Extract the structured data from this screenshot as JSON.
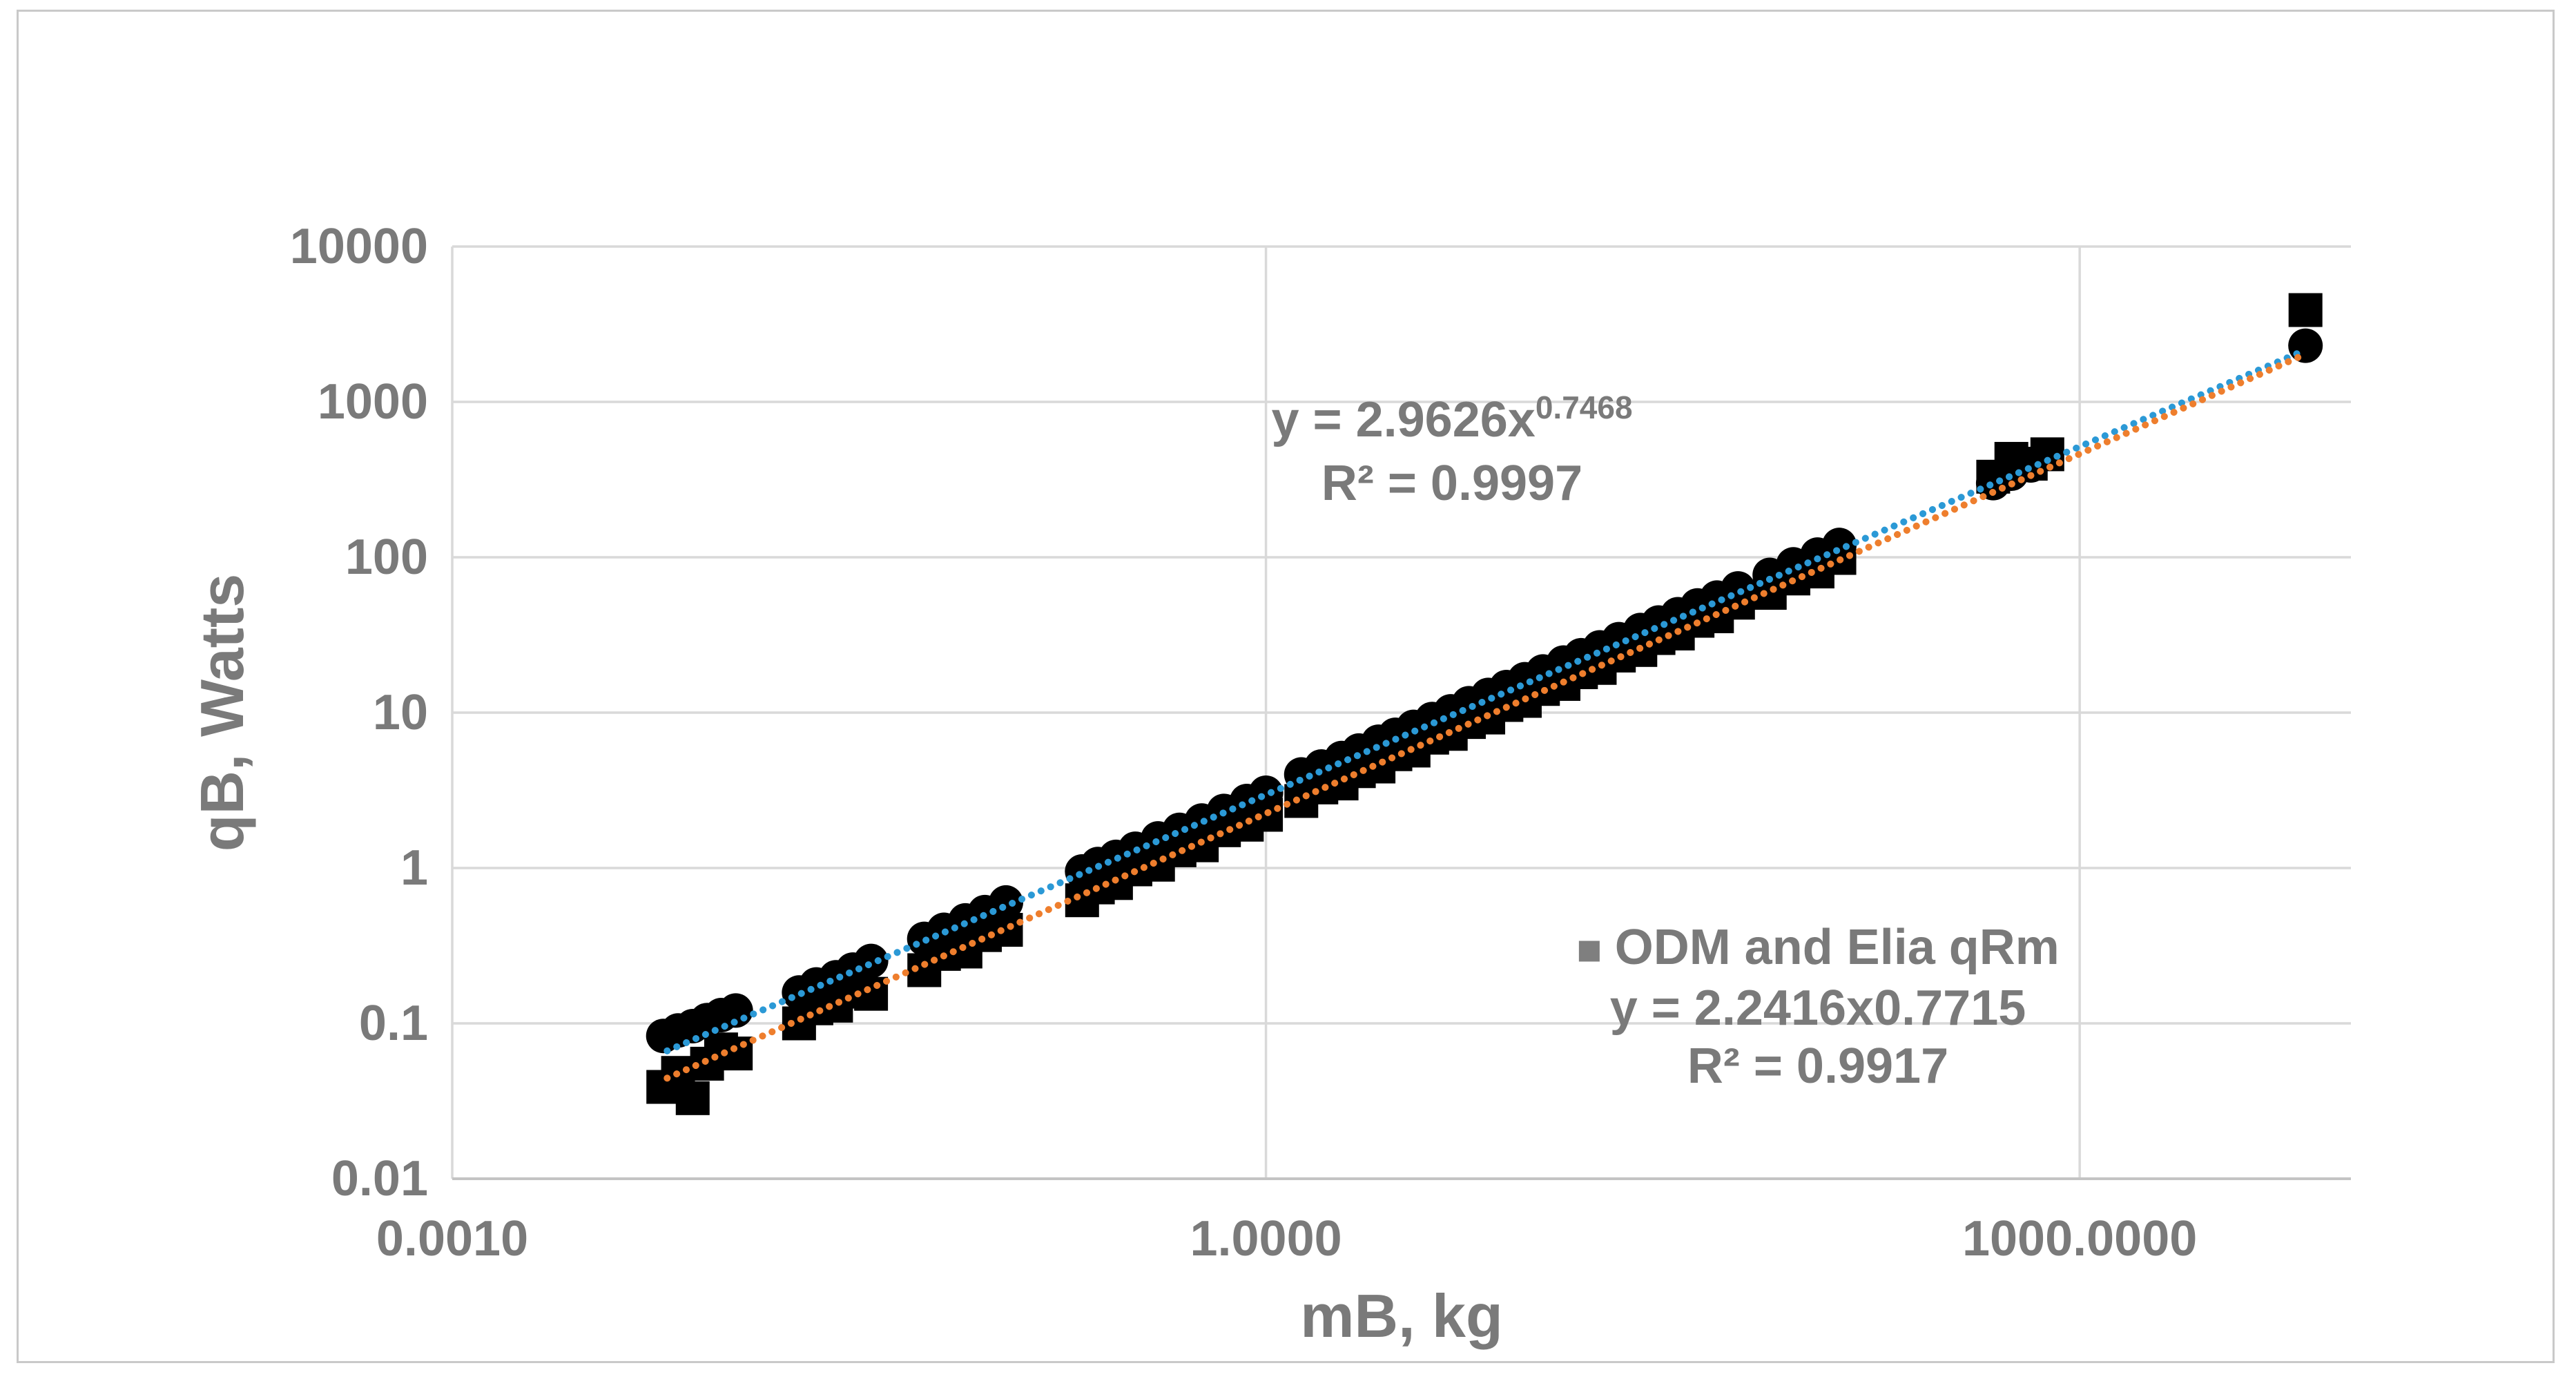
{
  "chart": {
    "background_color": "#ffffff",
    "frame_border_color": "#c9c9c9",
    "gridline_color": "#d9d9d9",
    "axis_line_color": "#c4c4c4",
    "text_color": "#7a7a7a",
    "marker_color": "#000000",
    "trendline_blue_color": "#2b99d6",
    "trendline_orange_color": "#ee7e2d",
    "legend_marker_color": "#7f7f7f"
  },
  "axis_titles": {
    "y": "qB, Watts",
    "x": "mB, kg"
  },
  "annotations": {
    "trend1_prefix": "y = 2.9626x",
    "trend1_exponent": "0.7468",
    "trend1_r2": "R² = 0.9997",
    "legend_marker": "■",
    "legend_label": "ODM and Elia qRm",
    "trend2_equation": "y = 2.2416x0.7715",
    "trend2_r2": "R² = 0.9917"
  },
  "chart_data": {
    "type": "scatter",
    "title": "",
    "xlabel": "mB, kg",
    "ylabel": "qB, Watts",
    "x_axis": {
      "scale": "log",
      "min": 0.001,
      "max": 10000,
      "ticks": [
        {
          "value": 0.001,
          "label": "0.0010"
        },
        {
          "value": 1,
          "label": "1.0000"
        },
        {
          "value": 1000,
          "label": "1000.0000"
        }
      ]
    },
    "y_axis": {
      "scale": "log",
      "min": 0.01,
      "max": 10000,
      "ticks": [
        {
          "value": 10000,
          "label": "10000"
        },
        {
          "value": 1000,
          "label": "1000"
        },
        {
          "value": 100,
          "label": "100"
        },
        {
          "value": 10,
          "label": "10"
        },
        {
          "value": 1,
          "label": "1"
        },
        {
          "value": 0.1,
          "label": "0.1"
        },
        {
          "value": 0.01,
          "label": "0.01"
        }
      ]
    },
    "grid": true,
    "legend_position": "inside-lower-right",
    "series": [
      {
        "name": "qB",
        "marker": "circle",
        "color": "#000000",
        "points": [
          [
            0.006,
            0.083
          ],
          [
            0.0068,
            0.09
          ],
          [
            0.0077,
            0.096
          ],
          [
            0.0087,
            0.105
          ],
          [
            0.0098,
            0.113
          ],
          [
            0.0111,
            0.121
          ],
          [
            0.019,
            0.158
          ],
          [
            0.022,
            0.178
          ],
          [
            0.026,
            0.198
          ],
          [
            0.03,
            0.222
          ],
          [
            0.035,
            0.252
          ],
          [
            0.055,
            0.35
          ],
          [
            0.065,
            0.4
          ],
          [
            0.078,
            0.46
          ],
          [
            0.092,
            0.52
          ],
          [
            0.11,
            0.6
          ],
          [
            0.21,
            0.95
          ],
          [
            0.24,
            1.06
          ],
          [
            0.28,
            1.18
          ],
          [
            0.33,
            1.33
          ],
          [
            0.4,
            1.55
          ],
          [
            0.48,
            1.76
          ],
          [
            0.58,
            2.02
          ],
          [
            0.7,
            2.33
          ],
          [
            0.85,
            2.7
          ],
          [
            1.0,
            3.05
          ],
          [
            1.35,
            4.0
          ],
          [
            1.6,
            4.5
          ],
          [
            1.9,
            5.1
          ],
          [
            2.2,
            5.7
          ],
          [
            2.6,
            6.5
          ],
          [
            3.0,
            7.2
          ],
          [
            3.5,
            8.1
          ],
          [
            4.1,
            9.1
          ],
          [
            4.8,
            10.2
          ],
          [
            5.6,
            11.5
          ],
          [
            6.6,
            13.0
          ],
          [
            7.7,
            14.6
          ],
          [
            9.0,
            16.4
          ],
          [
            10.5,
            18.4
          ],
          [
            12.5,
            21.0
          ],
          [
            14.5,
            23.4
          ],
          [
            17,
            26.3
          ],
          [
            20,
            29.7
          ],
          [
            24,
            34
          ],
          [
            28,
            38
          ],
          [
            33,
            43
          ],
          [
            39,
            49
          ],
          [
            46,
            55
          ],
          [
            55,
            63
          ],
          [
            72,
            77
          ],
          [
            88,
            90
          ],
          [
            108,
            104
          ],
          [
            130,
            120
          ],
          [
            480,
            300
          ],
          [
            560,
            345
          ],
          [
            660,
            390
          ],
          [
            6800,
            2300
          ]
        ]
      },
      {
        "name": "ODM and Elia qRm",
        "marker": "square",
        "color": "#000000",
        "points": [
          [
            0.006,
            0.039
          ],
          [
            0.0068,
            0.048
          ],
          [
            0.0077,
            0.033
          ],
          [
            0.0087,
            0.055
          ],
          [
            0.0098,
            0.068
          ],
          [
            0.0111,
            0.064
          ],
          [
            0.019,
            0.1
          ],
          [
            0.022,
            0.125
          ],
          [
            0.026,
            0.13
          ],
          [
            0.03,
            0.16
          ],
          [
            0.035,
            0.155
          ],
          [
            0.055,
            0.22
          ],
          [
            0.065,
            0.28
          ],
          [
            0.078,
            0.29
          ],
          [
            0.092,
            0.37
          ],
          [
            0.11,
            0.4
          ],
          [
            0.21,
            0.62
          ],
          [
            0.24,
            0.75
          ],
          [
            0.28,
            0.8
          ],
          [
            0.33,
            0.98
          ],
          [
            0.4,
            1.05
          ],
          [
            0.48,
            1.3
          ],
          [
            0.58,
            1.4
          ],
          [
            0.7,
            1.75
          ],
          [
            0.85,
            1.9
          ],
          [
            1.0,
            2.2
          ],
          [
            1.35,
            2.7
          ],
          [
            1.6,
            3.3
          ],
          [
            1.9,
            3.5
          ],
          [
            2.2,
            4.2
          ],
          [
            2.6,
            4.5
          ],
          [
            3.0,
            5.4
          ],
          [
            3.5,
            5.7
          ],
          [
            4.1,
            6.9
          ],
          [
            4.8,
            7.3
          ],
          [
            5.6,
            8.7
          ],
          [
            6.6,
            9.3
          ],
          [
            7.7,
            11.2
          ],
          [
            9.0,
            11.9
          ],
          [
            10.5,
            14.2
          ],
          [
            12.5,
            15.3
          ],
          [
            14.5,
            18.2
          ],
          [
            17,
            19.4
          ],
          [
            20,
            23.3
          ],
          [
            24,
            25.3
          ],
          [
            28,
            30.2
          ],
          [
            33,
            32.3
          ],
          [
            39,
            39
          ],
          [
            46,
            41.7
          ],
          [
            55,
            51
          ],
          [
            72,
            59
          ],
          [
            88,
            73
          ],
          [
            108,
            81
          ],
          [
            130,
            99
          ],
          [
            480,
            330
          ],
          [
            560,
            430
          ],
          [
            660,
            400
          ],
          [
            760,
            460
          ],
          [
            6800,
            3900
          ]
        ]
      }
    ],
    "trendlines": [
      {
        "series": "qB",
        "type": "power",
        "a": 2.9626,
        "b": 0.7468,
        "r2": 0.9997,
        "color": "#2b99d6",
        "style": "dotted",
        "x_start": 0.0062,
        "x_end": 6800
      },
      {
        "series": "ODM and Elia qRm",
        "type": "power",
        "a": 2.2416,
        "b": 0.7715,
        "r2": 0.9917,
        "color": "#ee7e2d",
        "style": "dotted",
        "x_start": 0.0062,
        "x_end": 6800
      }
    ]
  }
}
